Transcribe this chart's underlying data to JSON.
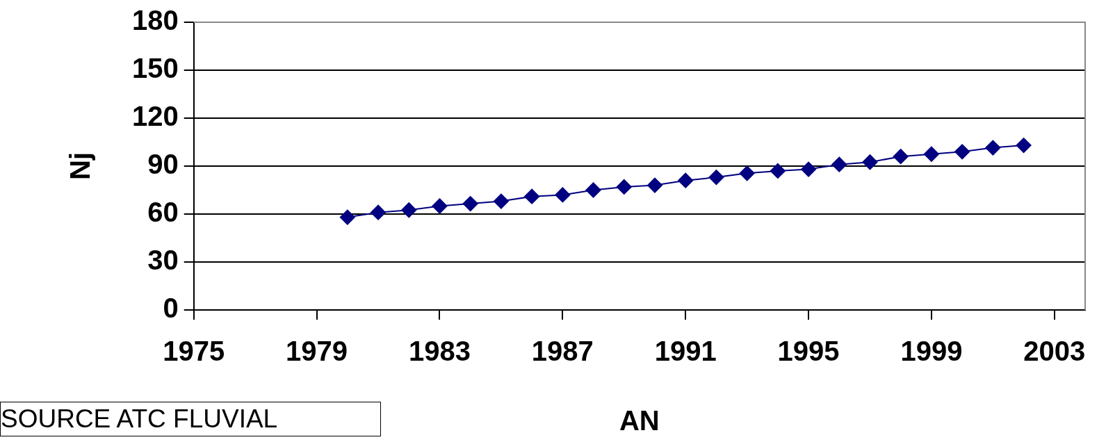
{
  "chart_data": {
    "type": "line",
    "xlabel": "AN",
    "ylabel": "Nj",
    "x": [
      1980,
      1981,
      1982,
      1983,
      1984,
      1985,
      1986,
      1987,
      1988,
      1989,
      1990,
      1991,
      1992,
      1993,
      1994,
      1995,
      1996,
      1997,
      1998,
      1999,
      2000,
      2001,
      2002
    ],
    "series": [
      {
        "color": "#000080",
        "values": [
          58,
          61,
          62.5,
          65,
          66.5,
          68,
          71,
          72,
          75,
          77,
          78,
          81,
          83,
          85.5,
          87,
          88,
          91,
          92.5,
          96,
          97.5,
          99,
          101.5,
          103
        ]
      }
    ],
    "xlim": [
      1975,
      2004
    ],
    "xticks": [
      1975,
      1979,
      1983,
      1987,
      1991,
      1995,
      1999,
      2003
    ],
    "ylim": [
      0,
      180
    ],
    "yticks": [
      0,
      30,
      60,
      90,
      120,
      150,
      180
    ],
    "grid": "y",
    "legend": false,
    "marker": "diamond",
    "line_style": "solid",
    "annotations": [
      "SOURCE ATC FLUVIAL"
    ]
  }
}
